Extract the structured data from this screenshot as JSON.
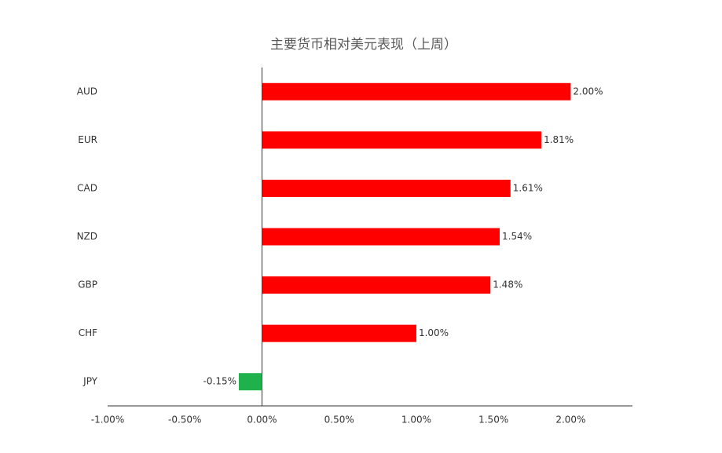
{
  "chart_data": {
    "type": "barh",
    "title": "主要货币相对美元表现（上周）",
    "categories": [
      "AUD",
      "EUR",
      "CAD",
      "NZD",
      "GBP",
      "CHF",
      "JPY"
    ],
    "values": [
      2.0,
      1.81,
      1.61,
      1.54,
      1.48,
      1.0,
      -0.15
    ],
    "value_labels": [
      "2.00%",
      "1.81%",
      "1.61%",
      "1.54%",
      "1.48%",
      "1.00%",
      "-0.15%"
    ],
    "colors": [
      "#ff0000",
      "#ff0000",
      "#ff0000",
      "#ff0000",
      "#ff0000",
      "#ff0000",
      "#1fb14b"
    ],
    "xlim": [
      -1,
      2.4
    ],
    "xticks": [
      {
        "value": -1,
        "label": "-1.00%"
      },
      {
        "value": -0.5,
        "label": "-0.50%"
      },
      {
        "value": 0,
        "label": "0.00%"
      },
      {
        "value": 0.5,
        "label": "0.50%"
      },
      {
        "value": 1,
        "label": "1.00%"
      },
      {
        "value": 1.5,
        "label": "1.50%"
      },
      {
        "value": 2,
        "label": "2.00%"
      }
    ]
  }
}
